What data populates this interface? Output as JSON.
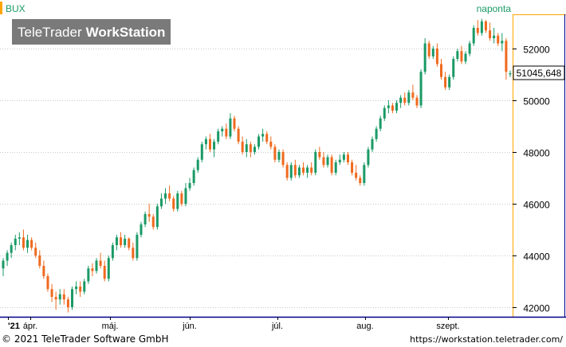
{
  "header": {
    "symbol": "BUX",
    "interval": "naponta",
    "watermark_brand": "TeleTrader",
    "watermark_product": "WorkStation",
    "last_value": "51045,648"
  },
  "footer": {
    "copyright": "© 2021 TeleTrader Software GmbH",
    "url": "https://workstation.teletrader.com/"
  },
  "colors": {
    "up": "#1a9a66",
    "down": "#ef6a1e",
    "accent": "#ffa500",
    "axis_border": "#00008b"
  },
  "chart_data": {
    "type": "candlestick",
    "series_name": "BUX",
    "y_axis_ticks": [
      "52000",
      "50000",
      "48000",
      "46000",
      "44000",
      "42000"
    ],
    "ylim": [
      41900,
      53150
    ],
    "x_axis_labels": [
      "'21",
      "ápr.",
      "máj.",
      "jún.",
      "júl.",
      "aug.",
      "szept."
    ],
    "last_price": 51045.648,
    "candles": [
      [
        43500,
        43900,
        43200,
        43800
      ],
      [
        43800,
        44200,
        43600,
        44100
      ],
      [
        44100,
        44500,
        43900,
        44400
      ],
      [
        44400,
        44800,
        44200,
        44650
      ],
      [
        44650,
        44900,
        44400,
        44700
      ],
      [
        44700,
        45000,
        44200,
        44300
      ],
      [
        44300,
        44800,
        44100,
        44600
      ],
      [
        44600,
        44700,
        44200,
        44300
      ],
      [
        44300,
        44500,
        43900,
        44000
      ],
      [
        44000,
        44200,
        43500,
        43600
      ],
      [
        43600,
        43800,
        43100,
        43200
      ],
      [
        43200,
        43300,
        42600,
        42700
      ],
      [
        42700,
        42900,
        42200,
        42400
      ],
      [
        42400,
        42600,
        41900,
        42300
      ],
      [
        42300,
        42700,
        42100,
        42500
      ],
      [
        42500,
        42700,
        42100,
        42300
      ],
      [
        42300,
        42400,
        41800,
        42000
      ],
      [
        42000,
        42800,
        41900,
        42700
      ],
      [
        42700,
        43000,
        42500,
        42800
      ],
      [
        42800,
        43000,
        42400,
        42600
      ],
      [
        42600,
        43100,
        42500,
        43000
      ],
      [
        43000,
        43600,
        42900,
        43500
      ],
      [
        43500,
        43700,
        43200,
        43400
      ],
      [
        43400,
        43900,
        43300,
        43800
      ],
      [
        43800,
        44100,
        43500,
        43600
      ],
      [
        43600,
        43800,
        43000,
        43100
      ],
      [
        43100,
        44000,
        43000,
        43900
      ],
      [
        43900,
        44500,
        43800,
        44400
      ],
      [
        44400,
        44800,
        44200,
        44700
      ],
      [
        44700,
        44900,
        44300,
        44400
      ],
      [
        44400,
        44800,
        44300,
        44650
      ],
      [
        44650,
        44700,
        44200,
        44300
      ],
      [
        44300,
        44500,
        43800,
        43900
      ],
      [
        43900,
        44900,
        43800,
        44800
      ],
      [
        44800,
        45300,
        44700,
        45200
      ],
      [
        45200,
        45700,
        45100,
        45600
      ],
      [
        45600,
        46000,
        45300,
        45500
      ],
      [
        45500,
        45600,
        45000,
        45100
      ],
      [
        45100,
        46000,
        45000,
        45900
      ],
      [
        45900,
        46400,
        45800,
        46200
      ],
      [
        46200,
        46600,
        46000,
        46400
      ],
      [
        46400,
        46700,
        46100,
        46200
      ],
      [
        46200,
        46300,
        45700,
        45800
      ],
      [
        45800,
        46500,
        45700,
        46400
      ],
      [
        46400,
        46500,
        45900,
        46000
      ],
      [
        46000,
        46800,
        45900,
        46600
      ],
      [
        46600,
        47000,
        46500,
        46800
      ],
      [
        46800,
        47400,
        46700,
        47300
      ],
      [
        47300,
        47800,
        47200,
        47700
      ],
      [
        47700,
        48400,
        47600,
        48300
      ],
      [
        48300,
        48600,
        48100,
        48500
      ],
      [
        48500,
        48700,
        48000,
        48100
      ],
      [
        48100,
        48500,
        47800,
        48400
      ],
      [
        48400,
        48900,
        48300,
        48800
      ],
      [
        48800,
        49000,
        48600,
        48900
      ],
      [
        48900,
        49100,
        48500,
        48600
      ],
      [
        48600,
        49500,
        48500,
        49300
      ],
      [
        49300,
        49400,
        48800,
        48900
      ],
      [
        48900,
        49000,
        48300,
        48400
      ],
      [
        48400,
        48600,
        47900,
        48000
      ],
      [
        48000,
        48500,
        47800,
        48300
      ],
      [
        48300,
        48400,
        47800,
        48000
      ],
      [
        48000,
        48300,
        47900,
        48200
      ],
      [
        48200,
        48700,
        48100,
        48600
      ],
      [
        48600,
        48900,
        48400,
        48700
      ],
      [
        48700,
        48800,
        48300,
        48400
      ],
      [
        48400,
        48600,
        48100,
        48200
      ],
      [
        48200,
        48300,
        47600,
        47700
      ],
      [
        47700,
        48100,
        47600,
        48000
      ],
      [
        48000,
        48100,
        47400,
        47500
      ],
      [
        47500,
        47600,
        46900,
        47000
      ],
      [
        47000,
        47600,
        46900,
        47500
      ],
      [
        47500,
        47700,
        47000,
        47100
      ],
      [
        47100,
        47500,
        47000,
        47400
      ],
      [
        47400,
        47600,
        47100,
        47200
      ],
      [
        47200,
        47500,
        47000,
        47400
      ],
      [
        47400,
        47600,
        47100,
        47200
      ],
      [
        47200,
        48100,
        47100,
        48000
      ],
      [
        48000,
        48200,
        47700,
        47800
      ],
      [
        47800,
        48000,
        47400,
        47500
      ],
      [
        47500,
        47900,
        47400,
        47800
      ],
      [
        47800,
        47900,
        47100,
        47200
      ],
      [
        47200,
        47700,
        47100,
        47600
      ],
      [
        47600,
        47900,
        47500,
        47700
      ],
      [
        47700,
        48000,
        47600,
        47900
      ],
      [
        47900,
        48000,
        47500,
        47600
      ],
      [
        47600,
        47700,
        47100,
        47200
      ],
      [
        47200,
        47500,
        46900,
        47000
      ],
      [
        47000,
        47100,
        46700,
        46800
      ],
      [
        46800,
        47600,
        46700,
        47500
      ],
      [
        47500,
        48200,
        47400,
        48100
      ],
      [
        48100,
        48600,
        48000,
        48500
      ],
      [
        48500,
        49000,
        48400,
        48900
      ],
      [
        48900,
        49400,
        48800,
        49300
      ],
      [
        49300,
        49800,
        49200,
        49700
      ],
      [
        49700,
        50000,
        49500,
        49800
      ],
      [
        49800,
        49900,
        49500,
        49600
      ],
      [
        49600,
        50000,
        49500,
        49900
      ],
      [
        49900,
        50200,
        49700,
        50100
      ],
      [
        50100,
        50300,
        49800,
        49900
      ],
      [
        49900,
        50400,
        49800,
        50300
      ],
      [
        50300,
        50600,
        50000,
        50100
      ],
      [
        50100,
        50200,
        49700,
        49800
      ],
      [
        49800,
        51200,
        49700,
        51100
      ],
      [
        51100,
        52400,
        51000,
        52200
      ],
      [
        52200,
        52300,
        51600,
        51700
      ],
      [
        51700,
        52100,
        51600,
        52000
      ],
      [
        52000,
        52200,
        51300,
        51400
      ],
      [
        51400,
        51600,
        50800,
        50900
      ],
      [
        50900,
        51100,
        50400,
        50500
      ],
      [
        50500,
        51000,
        50400,
        50900
      ],
      [
        50900,
        51700,
        50800,
        51600
      ],
      [
        51600,
        52000,
        51500,
        51900
      ],
      [
        51900,
        52100,
        51400,
        51500
      ],
      [
        51500,
        51900,
        51400,
        51800
      ],
      [
        51800,
        52300,
        51700,
        52200
      ],
      [
        52200,
        52900,
        52100,
        52800
      ],
      [
        52800,
        53100,
        52500,
        52600
      ],
      [
        52600,
        53150,
        52500,
        53050
      ],
      [
        53050,
        53100,
        52600,
        52700
      ],
      [
        52700,
        53000,
        52300,
        52400
      ],
      [
        52400,
        52800,
        52200,
        52500
      ],
      [
        52500,
        52600,
        52100,
        52200
      ],
      [
        52200,
        52600,
        51900,
        52300
      ],
      [
        52300,
        52400,
        50800,
        51100
      ],
      [
        51000,
        51150,
        50900,
        51045.648
      ]
    ]
  }
}
